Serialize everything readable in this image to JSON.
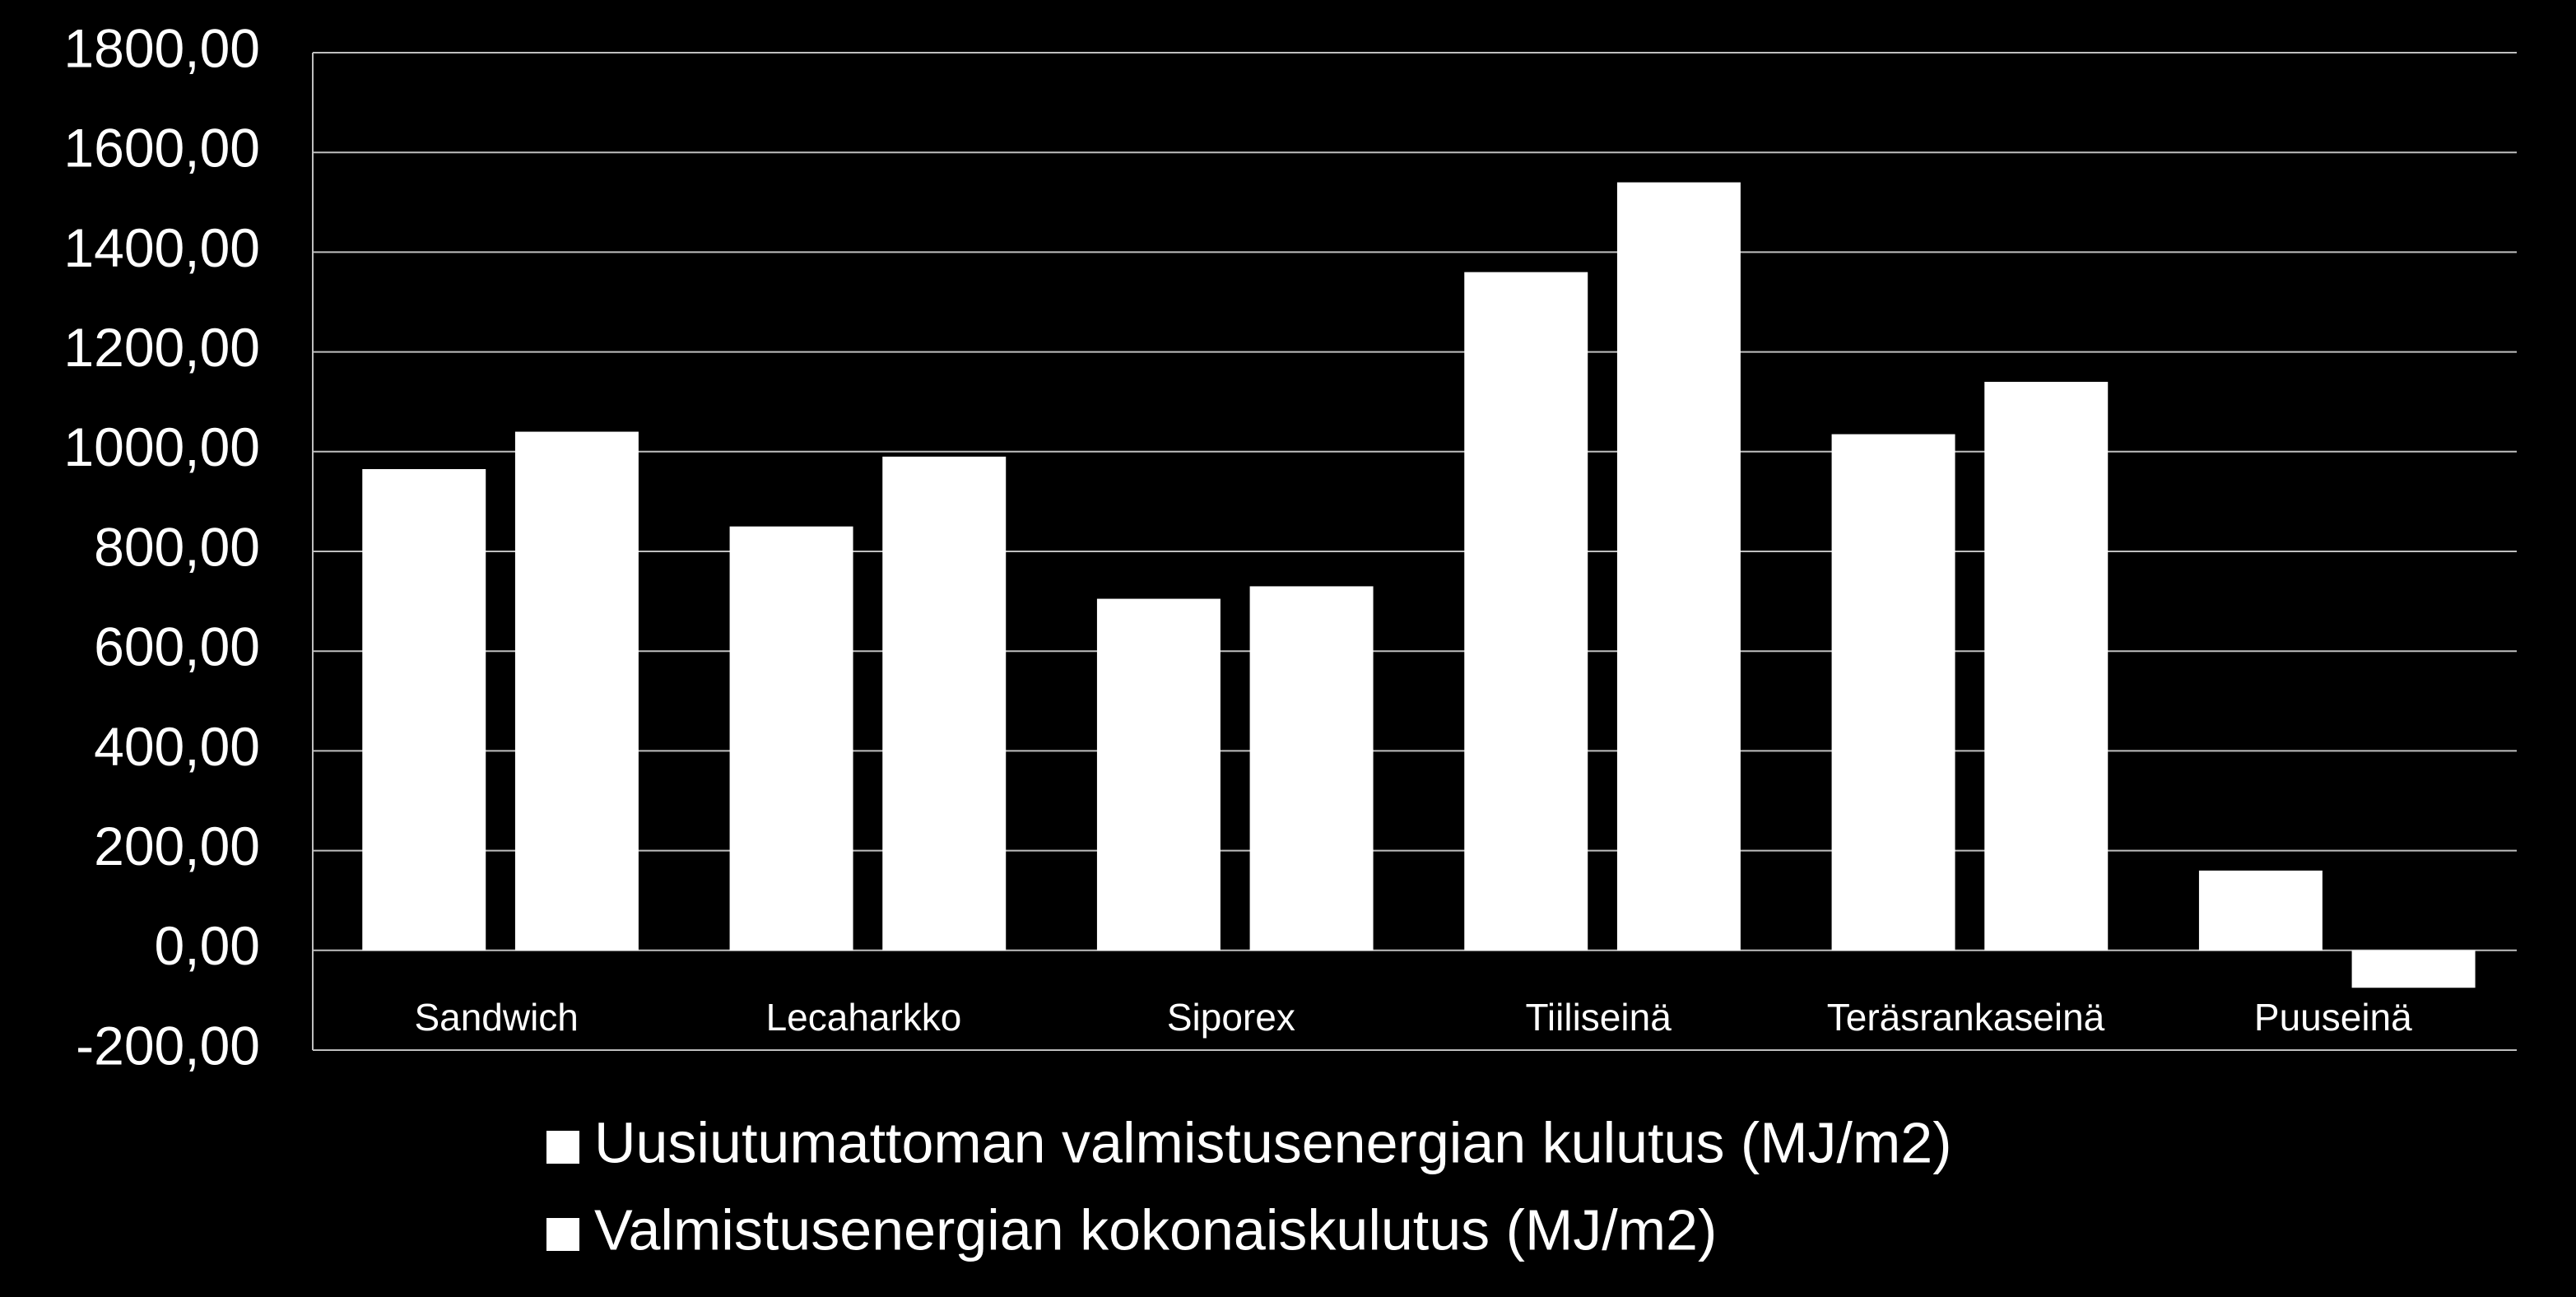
{
  "chart_data": {
    "type": "bar",
    "categories": [
      "Sandwich",
      "Lecaharkko",
      "Siporex",
      "Tiiliseinä",
      "Teräsrankaseinä",
      "Puuseinä"
    ],
    "series": [
      {
        "name": "Uusiutumattoman valmistusenergian kulutus (MJ/m2)",
        "color": "#ffffff",
        "values": [
          965,
          850,
          705,
          1360,
          1035,
          160
        ]
      },
      {
        "name": "Valmistusenergian kokonaiskulutus (MJ/m2)",
        "color": "#ffffff",
        "values": [
          1040,
          990,
          730,
          1540,
          1140,
          -75
        ]
      }
    ],
    "ylim": [
      -200,
      1800
    ],
    "yticks": [
      {
        "value": -200,
        "label": "-200,00"
      },
      {
        "value": 0,
        "label": "0,00"
      },
      {
        "value": 200,
        "label": "200,00"
      },
      {
        "value": 400,
        "label": "400,00"
      },
      {
        "value": 600,
        "label": "600,00"
      },
      {
        "value": 800,
        "label": "800,00"
      },
      {
        "value": 1000,
        "label": "1000,00"
      },
      {
        "value": 1200,
        "label": "1200,00"
      },
      {
        "value": 1400,
        "label": "1400,00"
      },
      {
        "value": 1600,
        "label": "1600,00"
      },
      {
        "value": 1800,
        "label": "1800,00"
      }
    ],
    "grid": true,
    "legend": "bottom"
  }
}
